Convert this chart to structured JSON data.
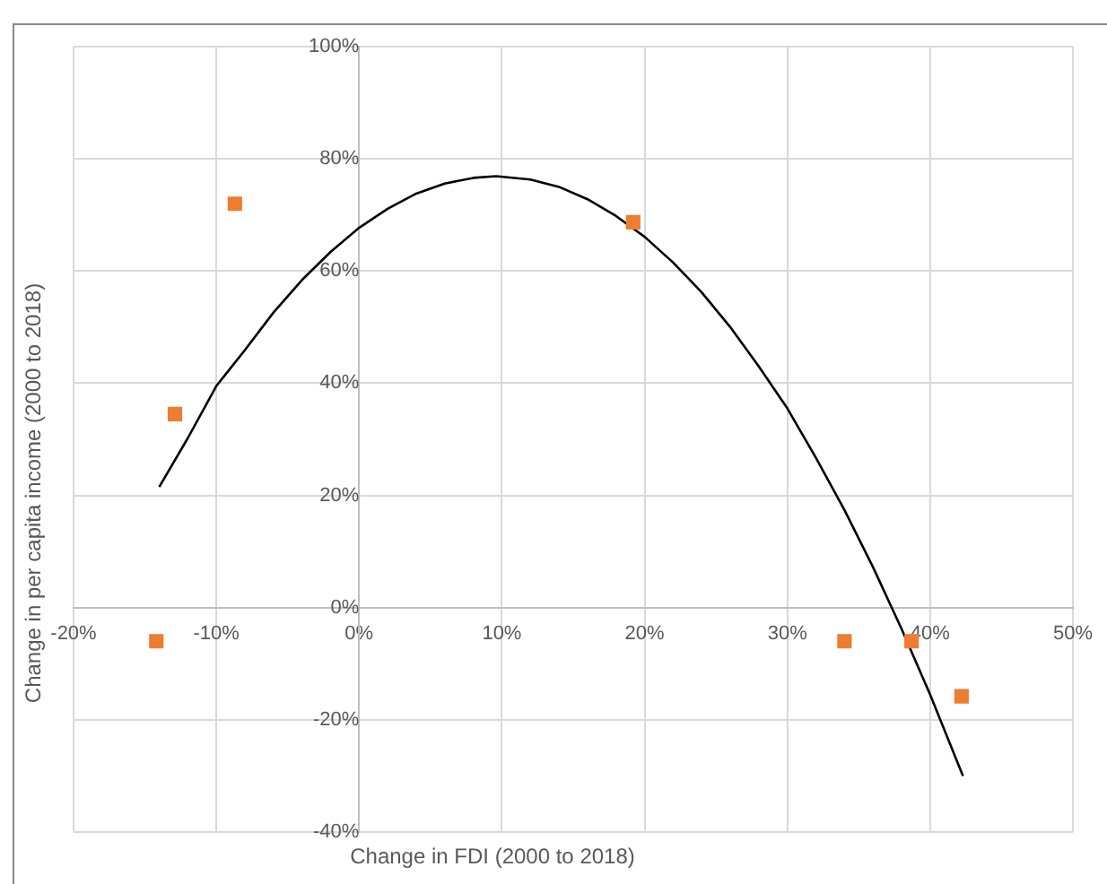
{
  "chart_data": {
    "type": "scatter",
    "xlabel": "Change in FDI (2000 to 2018)",
    "ylabel": "Change in per capita income (2000 to 2018)",
    "xlim": [
      -20,
      50
    ],
    "xticks": [
      {
        "value": -20,
        "label": "-20%"
      },
      {
        "value": -10,
        "label": "-10%"
      },
      {
        "value": 0,
        "label": "0%"
      },
      {
        "value": 10,
        "label": "10%"
      },
      {
        "value": 20,
        "label": "20%"
      },
      {
        "value": 30,
        "label": "30%"
      },
      {
        "value": 40,
        "label": "40%"
      },
      {
        "value": 50,
        "label": "50%"
      }
    ],
    "ylim": [
      -40,
      100
    ],
    "yticks": [
      {
        "value": -40,
        "label": "-40%"
      },
      {
        "value": -20,
        "label": "-20%"
      },
      {
        "value": 0,
        "label": "0%"
      },
      {
        "value": 20,
        "label": "20%"
      },
      {
        "value": 40,
        "label": "40%"
      },
      {
        "value": 60,
        "label": "60%"
      },
      {
        "value": 80,
        "label": "80%"
      },
      {
        "value": 100,
        "label": "100%"
      }
    ],
    "grid": true,
    "legend": false,
    "series": [
      {
        "type": "scatter",
        "color": "#ed7d31",
        "marker": "square",
        "x": [
          -14.2,
          -12.9,
          -8.7,
          19.2,
          34.0,
          38.7,
          42.2
        ],
        "values": [
          -6,
          34.5,
          72,
          68.7,
          -6,
          -6,
          -15.8
        ]
      },
      {
        "type": "line",
        "color": "#000000",
        "marker": "none",
        "x": [
          -14,
          -12,
          -10,
          -8,
          -6,
          -4,
          -2,
          0,
          2,
          4,
          6,
          8,
          9.6,
          12,
          14,
          16,
          18,
          20,
          22,
          24,
          26,
          28,
          30,
          32,
          34,
          36,
          38,
          40,
          42.3
        ],
        "values": [
          21.5,
          30.2,
          39.5,
          45.9,
          52.6,
          58.4,
          63.4,
          67.7,
          71.1,
          73.8,
          75.6,
          76.6,
          76.9,
          76.3,
          75,
          72.8,
          69.8,
          66.1,
          61.5,
          56.2,
          50,
          43,
          35.5,
          26.7,
          17.4,
          7.2,
          -3.8,
          -15.5,
          -30
        ]
      }
    ]
  }
}
